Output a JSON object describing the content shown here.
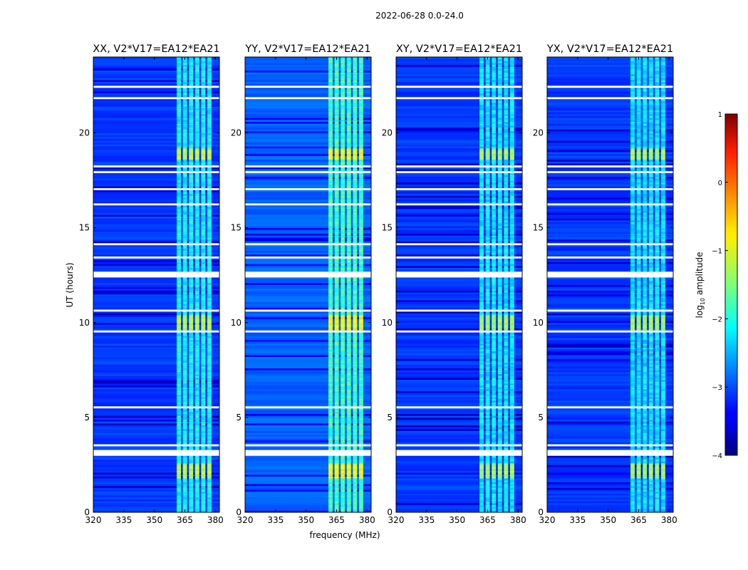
{
  "chart_data": {
    "type": "heatmap",
    "title": "2022-06-28 0.0-24.0",
    "xlabel": "frequency (MHz)",
    "ylabel": "UT (hours)",
    "xlim": [
      320,
      382
    ],
    "ylim": [
      0,
      24
    ],
    "xticks": [
      "320",
      "335",
      "350",
      "365",
      "380"
    ],
    "yticks": [
      "0",
      "5",
      "10",
      "15",
      "20"
    ],
    "panels": [
      {
        "title": "XX, V2*V17=EA12*EA21",
        "base_level": -3.1,
        "band_level": -2.1
      },
      {
        "title": "YY, V2*V17=EA12*EA21",
        "base_level": -2.9,
        "band_level": -1.8
      },
      {
        "title": "XY, V2*V17=EA12*EA21",
        "base_level": -3.1,
        "band_level": -2.2
      },
      {
        "title": "YX, V2*V17=EA12*EA21",
        "base_level": -3.1,
        "band_level": -2.2
      }
    ],
    "rfi_band_mhz": [
      361,
      379
    ],
    "strong_rfi_hours": [
      [
        1.8,
        2.6
      ],
      [
        9.6,
        10.4
      ],
      [
        18.6,
        19.2
      ]
    ],
    "flagged_hours": [
      [
        3.0,
        3.3
      ],
      [
        3.5,
        3.6
      ],
      [
        5.5,
        5.6
      ],
      [
        9.5,
        9.6
      ],
      [
        10.6,
        10.7
      ],
      [
        12.4,
        12.7
      ],
      [
        13.4,
        13.5
      ],
      [
        14.1,
        14.2
      ],
      [
        16.2,
        16.3
      ],
      [
        17.0,
        17.1
      ],
      [
        17.9,
        18.0
      ],
      [
        18.2,
        18.3
      ],
      [
        21.8,
        21.9
      ],
      [
        22.4,
        22.5
      ]
    ],
    "colorbar": {
      "label": "log10 amplitude",
      "min": -4,
      "max": 1,
      "ticks": [
        "1",
        "0",
        "−1",
        "−2",
        "−3",
        "−4"
      ]
    }
  }
}
